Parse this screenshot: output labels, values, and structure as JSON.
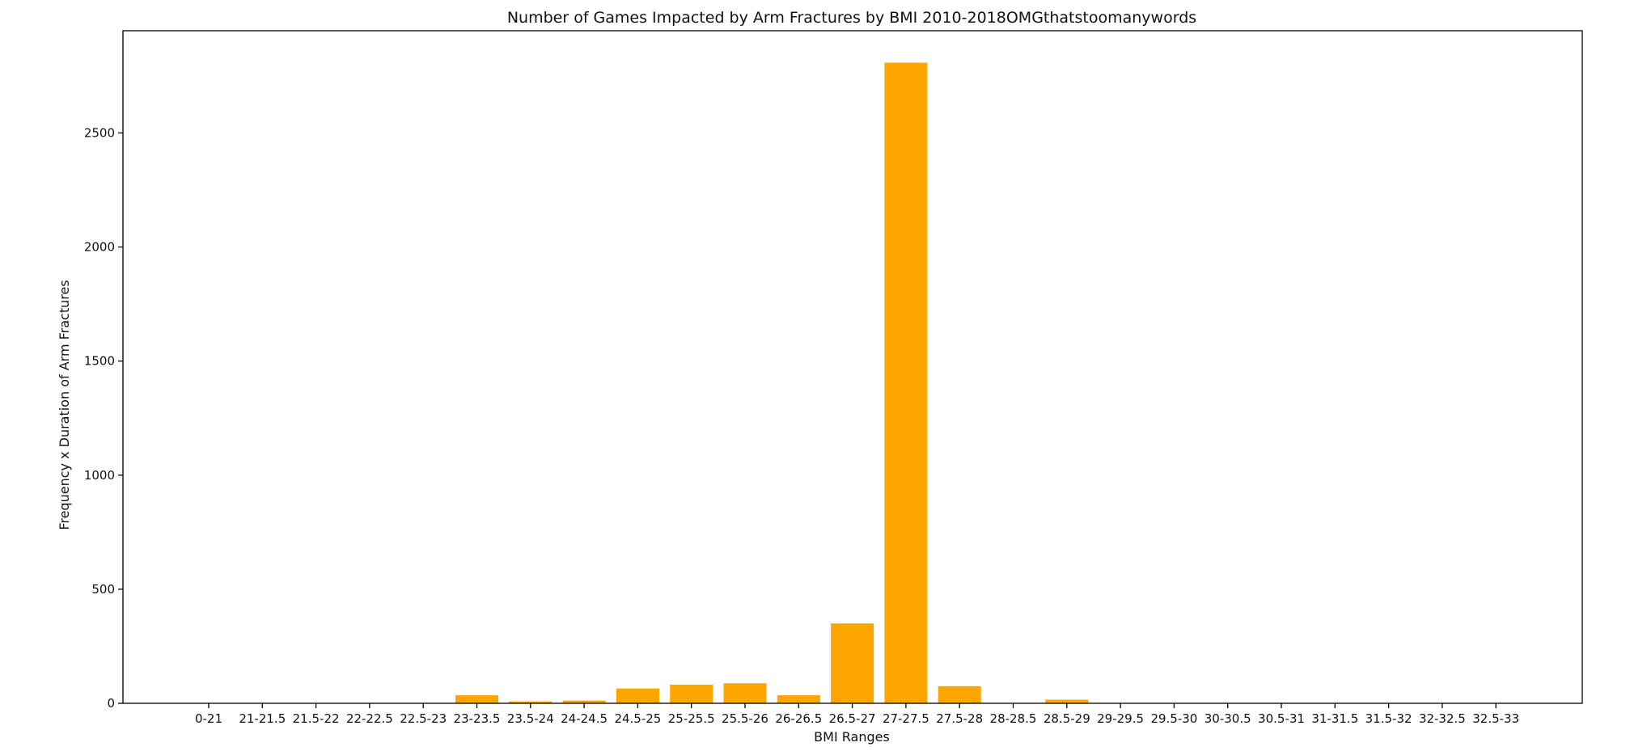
{
  "chart_data": {
    "type": "bar",
    "title": "Number of Games Impacted by Arm Fractures by BMI 2010-2018OMGthatstoomanywords",
    "xlabel": "BMI Ranges",
    "ylabel": "Frequency x Duration of Arm Fractures",
    "categories": [
      "0-21",
      "21-21.5",
      "21.5-22",
      "22-22.5",
      "22.5-23",
      "23-23.5",
      "23.5-24",
      "24-24.5",
      "24.5-25",
      "25-25.5",
      "25.5-26",
      "26-26.5",
      "26.5-27",
      "27-27.5",
      "27.5-28",
      "28-28.5",
      "28.5-29",
      "29-29.5",
      "29.5-30",
      "30-30.5",
      "30.5-31",
      "31-31.5",
      "31.5-32",
      "32-32.5",
      "32.5-33"
    ],
    "values": [
      0,
      0,
      0,
      0,
      0,
      35,
      8,
      12,
      65,
      82,
      88,
      35,
      350,
      2808,
      75,
      0,
      16,
      0,
      0,
      0,
      0,
      0,
      0,
      0,
      0
    ],
    "yticks": [
      0,
      500,
      1000,
      1500,
      2000,
      2500
    ],
    "ylim": [
      0,
      2948
    ],
    "bar_color": "#ffa500",
    "grid": false,
    "legend": "none"
  }
}
